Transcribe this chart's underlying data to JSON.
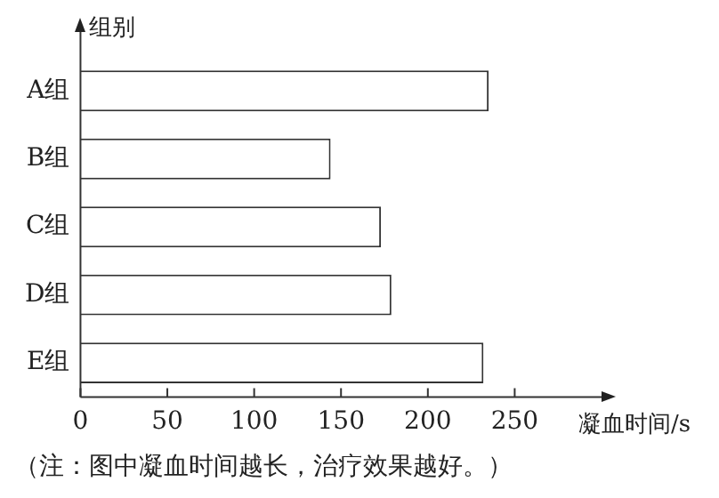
{
  "chart_data": {
    "type": "bar",
    "orientation": "horizontal",
    "ylabel": "组别",
    "xlabel": "凝血时间/s",
    "categories": [
      "A组",
      "B组",
      "C组",
      "D组",
      "E组"
    ],
    "values": [
      235,
      144,
      173,
      179,
      232
    ],
    "color": "#ffffff",
    "xlim": [
      0,
      300
    ],
    "xticks": [
      0,
      50,
      100,
      150,
      200,
      250
    ],
    "annotations": [
      "（注：图中凝血时间越长，治疗效果越好。）"
    ]
  }
}
